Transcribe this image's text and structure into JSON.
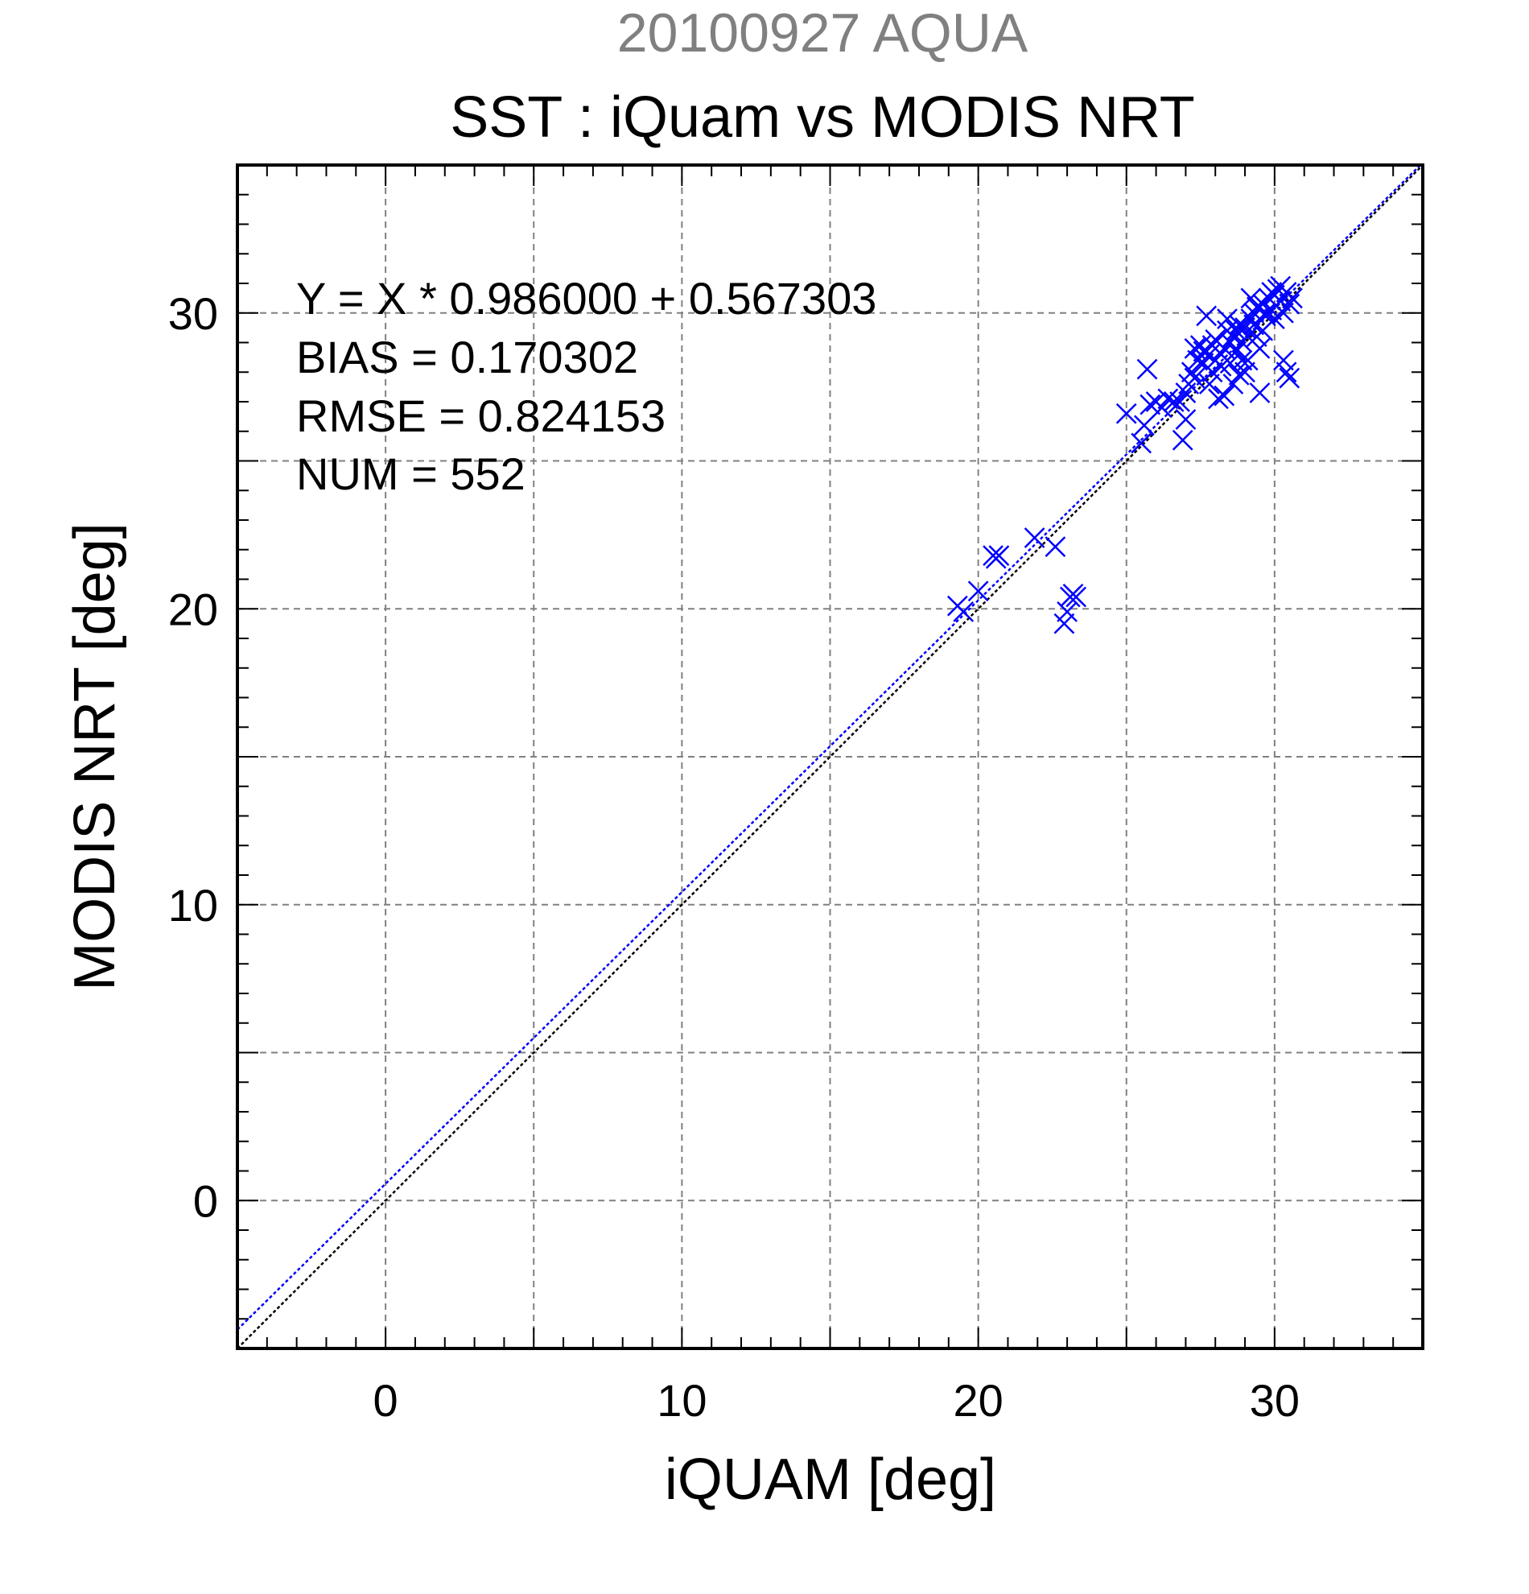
{
  "chart_data": {
    "type": "scatter",
    "suptitle": "20100927 AQUA",
    "title": "SST : iQuam vs MODIS NRT",
    "xlabel": "iQUAM [deg]",
    "ylabel": "MODIS NRT [deg]",
    "xlim": [
      -5,
      35
    ],
    "ylim": [
      -5,
      35
    ],
    "xticks": [
      0,
      10,
      20,
      30
    ],
    "yticks": [
      0,
      10,
      20,
      30
    ],
    "grid": true,
    "annotations": [
      "Y = X * 0.986000 + 0.567303",
      "BIAS = 0.170302",
      "RMSE = 0.824153",
      "NUM = 552"
    ],
    "lines": [
      {
        "kind": "identity",
        "slope": 1,
        "intercept": 0,
        "color": "#000000"
      },
      {
        "kind": "regression",
        "slope": 0.986,
        "intercept": 0.567303,
        "color": "#0000ff"
      }
    ],
    "series": [
      {
        "marker": "x",
        "color": "#0000ff",
        "points": [
          [
            19.3,
            20.1
          ],
          [
            19.5,
            19.9
          ],
          [
            20.0,
            20.6
          ],
          [
            20.5,
            21.8
          ],
          [
            20.7,
            21.8
          ],
          [
            20.6,
            21.7
          ],
          [
            21.9,
            22.4
          ],
          [
            22.6,
            22.1
          ],
          [
            22.9,
            19.5
          ],
          [
            23.0,
            19.9
          ],
          [
            23.1,
            20.4
          ],
          [
            23.2,
            20.5
          ],
          [
            23.3,
            20.4
          ],
          [
            25.0,
            26.6
          ],
          [
            25.5,
            25.6
          ],
          [
            25.6,
            26.2
          ],
          [
            25.7,
            28.1
          ],
          [
            25.8,
            26.9
          ],
          [
            26.0,
            27.0
          ],
          [
            26.2,
            26.8
          ],
          [
            26.4,
            27.1
          ],
          [
            26.6,
            27.0
          ],
          [
            26.8,
            27.0
          ],
          [
            26.9,
            25.7
          ],
          [
            27.0,
            26.4
          ],
          [
            27.0,
            27.3
          ],
          [
            27.1,
            27.6
          ],
          [
            27.2,
            28.0
          ],
          [
            27.3,
            27.8
          ],
          [
            27.4,
            28.4
          ],
          [
            27.5,
            28.9
          ],
          [
            27.6,
            28.7
          ],
          [
            27.8,
            27.6
          ],
          [
            27.9,
            28.9
          ],
          [
            28.0,
            29.1
          ],
          [
            28.1,
            27.1
          ],
          [
            28.2,
            28.2
          ],
          [
            28.3,
            28.8
          ],
          [
            28.4,
            29.4
          ],
          [
            28.5,
            28.3
          ],
          [
            28.6,
            29.2
          ],
          [
            28.7,
            28.7
          ],
          [
            28.8,
            27.9
          ],
          [
            28.9,
            29.0
          ],
          [
            29.0,
            29.5
          ],
          [
            29.1,
            28.4
          ],
          [
            29.2,
            29.8
          ],
          [
            29.3,
            30.0
          ],
          [
            29.4,
            29.2
          ],
          [
            29.5,
            28.8
          ],
          [
            29.6,
            30.3
          ],
          [
            29.7,
            29.9
          ],
          [
            29.8,
            30.5
          ],
          [
            29.9,
            30.1
          ],
          [
            30.0,
            30.6
          ],
          [
            30.1,
            30.8
          ],
          [
            30.2,
            30.4
          ],
          [
            30.3,
            30.0
          ],
          [
            30.4,
            30.7
          ],
          [
            30.5,
            30.3
          ],
          [
            30.6,
            30.5
          ],
          [
            30.4,
            28.0
          ],
          [
            30.5,
            27.8
          ],
          [
            30.3,
            28.4
          ],
          [
            29.5,
            27.3
          ],
          [
            28.3,
            27.2
          ],
          [
            27.7,
            29.9
          ],
          [
            27.3,
            28.8
          ],
          [
            28.0,
            28.4
          ],
          [
            28.6,
            27.6
          ],
          [
            29.0,
            28.0
          ],
          [
            29.2,
            30.5
          ],
          [
            29.4,
            30.2
          ],
          [
            28.8,
            29.6
          ],
          [
            28.4,
            29.8
          ],
          [
            27.9,
            28.0
          ],
          [
            27.6,
            28.3
          ],
          [
            28.2,
            28.6
          ],
          [
            29.1,
            29.2
          ],
          [
            29.7,
            30.0
          ],
          [
            30.0,
            29.8
          ],
          [
            29.3,
            29.6
          ],
          [
            28.9,
            28.4
          ],
          [
            28.5,
            29.0
          ],
          [
            27.8,
            28.6
          ],
          [
            29.6,
            29.4
          ],
          [
            30.2,
            30.9
          ],
          [
            29.9,
            30.7
          ],
          [
            28.7,
            29.4
          ]
        ]
      }
    ]
  }
}
